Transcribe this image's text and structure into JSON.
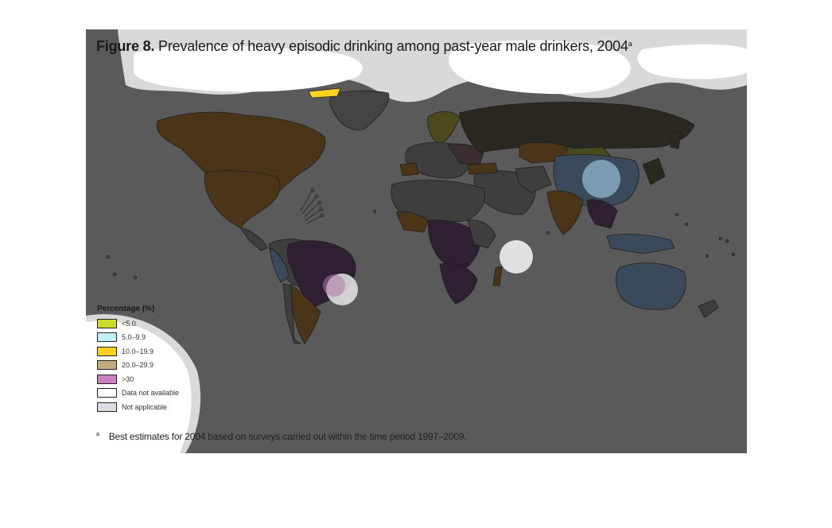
{
  "figure": {
    "label": "Figure 8.",
    "title": "Prevalence of heavy episodic drinking among past-year male drinkers, 2004",
    "title_marker": "a"
  },
  "legend": {
    "title": "Percentage (%)",
    "items": [
      {
        "label": "<5.0",
        "color": "#c8dc28"
      },
      {
        "label": "5.0–9.9",
        "color": "#c4f0f8"
      },
      {
        "label": "10.0–19.9",
        "color": "#ffd21e"
      },
      {
        "label": "20.0–29.9",
        "color": "#c4aa80"
      },
      {
        "label": ">30",
        "color": "#cc80c4"
      },
      {
        "label": "Data not available",
        "color": "#ffffff"
      },
      {
        "label": "Not applicable",
        "color": "#d8dce0"
      }
    ]
  },
  "footnote": {
    "marker": "a",
    "text": "Best estimates for 2004 based on surveys carried out within the time period 1997–2009."
  },
  "colors": {
    "background": "#5a5a5a",
    "overlay_white": "#d8d8d8"
  }
}
